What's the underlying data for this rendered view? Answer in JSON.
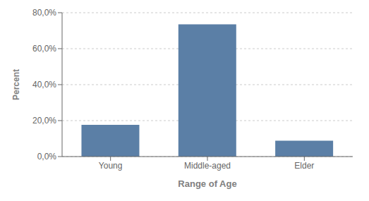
{
  "chart_data": {
    "type": "bar",
    "categories": [
      "Young",
      "Middle-aged",
      "Elder"
    ],
    "values": [
      17.6,
      73.5,
      8.8
    ],
    "color": "#5b7fa6",
    "xlabel": "Range of Age",
    "ylabel": "Percent",
    "ylim": [
      0,
      80
    ],
    "yticks": [
      {
        "value": 0,
        "label": "0,0%"
      },
      {
        "value": 20,
        "label": "20,0%"
      },
      {
        "value": 40,
        "label": "40,0%"
      },
      {
        "value": 60,
        "label": "60,0%"
      },
      {
        "value": 80,
        "label": "80,0%"
      }
    ],
    "grid": true
  }
}
